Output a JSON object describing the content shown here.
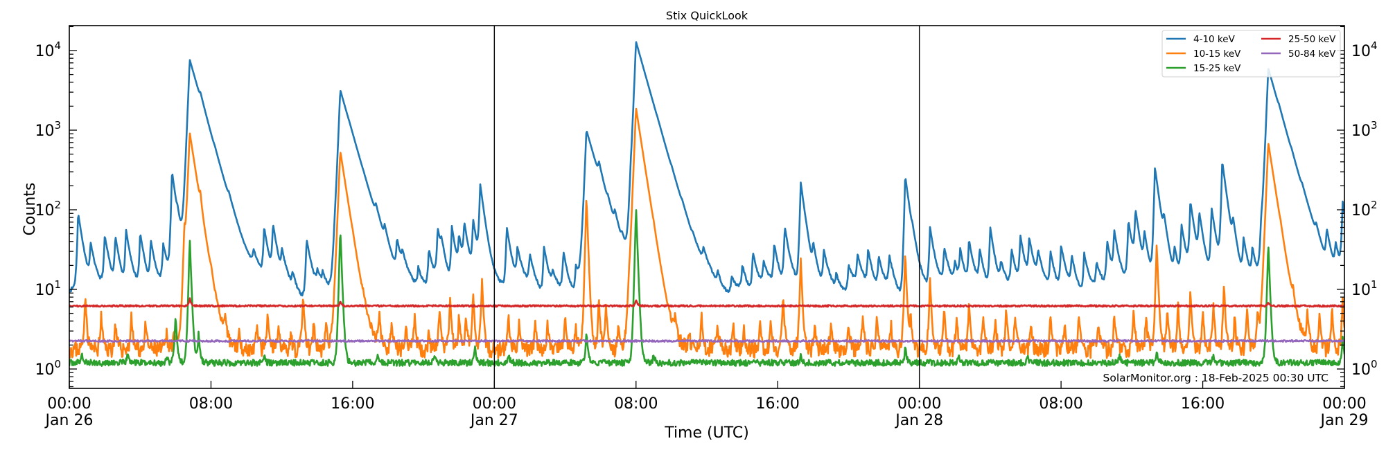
{
  "chart_data": {
    "type": "line",
    "title": "Stix QuickLook",
    "xlabel": "Time (UTC)",
    "ylabel": "Counts",
    "yscale": "log",
    "ylim": [
      0.55,
      20000
    ],
    "xlim_hours": [
      0,
      72
    ],
    "x_ticks": [
      {
        "hour": 0,
        "time": "00:00",
        "date": "Jan 26"
      },
      {
        "hour": 8,
        "time": "08:00",
        "date": ""
      },
      {
        "hour": 16,
        "time": "16:00",
        "date": ""
      },
      {
        "hour": 24,
        "time": "00:00",
        "date": "Jan 27"
      },
      {
        "hour": 32,
        "time": "08:00",
        "date": ""
      },
      {
        "hour": 40,
        "time": "16:00",
        "date": ""
      },
      {
        "hour": 48,
        "time": "00:00",
        "date": "Jan 28"
      },
      {
        "hour": 56,
        "time": "08:00",
        "date": ""
      },
      {
        "hour": 64,
        "time": "16:00",
        "date": ""
      },
      {
        "hour": 72,
        "time": "00:00",
        "date": "Jan 29"
      }
    ],
    "y_ticks": [
      {
        "exp": 0,
        "base": "10",
        "sup": "0"
      },
      {
        "exp": 1,
        "base": "10",
        "sup": "1"
      },
      {
        "exp": 2,
        "base": "10",
        "sup": "2"
      },
      {
        "exp": 3,
        "base": "10",
        "sup": "3"
      },
      {
        "exp": 4,
        "base": "10",
        "sup": "4"
      }
    ],
    "day_separators_hours": [
      24,
      48
    ],
    "grid": false,
    "legend_position": "upper right",
    "annotation": "SolarMonitor.org : 18-Feb-2025 00:30 UTC",
    "series": [
      {
        "name": "4-10 keV",
        "color": "#1f77b4",
        "baseline": 9.5,
        "noise": 0.06,
        "seed": 11,
        "peaks": [
          [
            0.5,
            90
          ],
          [
            1.2,
            35
          ],
          [
            2.0,
            45
          ],
          [
            2.6,
            45
          ],
          [
            3.2,
            55
          ],
          [
            4.0,
            50
          ],
          [
            4.6,
            40
          ],
          [
            5.3,
            35
          ],
          [
            5.8,
            300
          ],
          [
            6.1,
            30
          ],
          [
            6.8,
            7700
          ],
          [
            7.4,
            450
          ],
          [
            8.2,
            40
          ],
          [
            9.0,
            30
          ],
          [
            10.4,
            20
          ],
          [
            11.0,
            55
          ],
          [
            11.5,
            60
          ],
          [
            12.0,
            25
          ],
          [
            12.6,
            15
          ],
          [
            13.4,
            45
          ],
          [
            14.0,
            15
          ],
          [
            14.3,
            15
          ],
          [
            15.0,
            25
          ],
          [
            15.3,
            3200
          ],
          [
            15.8,
            30
          ],
          [
            16.3,
            12
          ],
          [
            16.6,
            15
          ],
          [
            17.3,
            40
          ],
          [
            17.8,
            30
          ],
          [
            18.5,
            35
          ],
          [
            18.8,
            20
          ],
          [
            19.7,
            18
          ],
          [
            20.3,
            30
          ],
          [
            20.8,
            55
          ],
          [
            21.0,
            25
          ],
          [
            21.6,
            60
          ],
          [
            22.0,
            40
          ],
          [
            22.3,
            60
          ],
          [
            22.8,
            70
          ],
          [
            23.2,
            200
          ],
          [
            24.7,
            60
          ],
          [
            25.3,
            30
          ],
          [
            26.0,
            25
          ],
          [
            26.8,
            35
          ],
          [
            27.3,
            15
          ],
          [
            27.9,
            30
          ],
          [
            28.6,
            20
          ],
          [
            29.2,
            1000
          ],
          [
            29.9,
            140
          ],
          [
            30.4,
            30
          ],
          [
            30.8,
            40
          ],
          [
            31.2,
            20
          ],
          [
            31.7,
            100
          ],
          [
            32.0,
            12900
          ],
          [
            33.2,
            40
          ],
          [
            34.0,
            25
          ],
          [
            34.6,
            20
          ],
          [
            35.2,
            15
          ],
          [
            35.8,
            20
          ],
          [
            36.6,
            15
          ],
          [
            37.4,
            15
          ],
          [
            38.0,
            20
          ],
          [
            38.6,
            30
          ],
          [
            39.2,
            20
          ],
          [
            39.8,
            35
          ],
          [
            40.4,
            60
          ],
          [
            41.3,
            220
          ],
          [
            42.0,
            30
          ],
          [
            42.6,
            30
          ],
          [
            43.3,
            15
          ],
          [
            44.0,
            20
          ],
          [
            44.5,
            25
          ],
          [
            45.1,
            30
          ],
          [
            45.7,
            25
          ],
          [
            46.3,
            25
          ],
          [
            47.2,
            270
          ],
          [
            47.6,
            20
          ],
          [
            48.6,
            60
          ],
          [
            49.4,
            30
          ],
          [
            50.0,
            20
          ],
          [
            50.3,
            30
          ],
          [
            50.8,
            40
          ],
          [
            51.4,
            30
          ],
          [
            52.0,
            60
          ],
          [
            52.6,
            20
          ],
          [
            53.2,
            30
          ],
          [
            53.7,
            45
          ],
          [
            54.2,
            40
          ],
          [
            54.7,
            25
          ],
          [
            55.4,
            30
          ],
          [
            56.0,
            35
          ],
          [
            56.6,
            25
          ],
          [
            57.3,
            30
          ],
          [
            58.0,
            20
          ],
          [
            58.6,
            40
          ],
          [
            59.0,
            50
          ],
          [
            59.8,
            70
          ],
          [
            60.2,
            90
          ],
          [
            60.7,
            45
          ],
          [
            61.3,
            340
          ],
          [
            61.8,
            50
          ],
          [
            62.4,
            30
          ],
          [
            62.8,
            60
          ],
          [
            63.3,
            120
          ],
          [
            63.8,
            80
          ],
          [
            64.5,
            100
          ],
          [
            65.1,
            400
          ],
          [
            65.7,
            50
          ],
          [
            66.3,
            40
          ],
          [
            66.8,
            30
          ],
          [
            67.3,
            45
          ],
          [
            67.7,
            6000
          ],
          [
            68.3,
            140
          ],
          [
            69.0,
            40
          ],
          [
            69.6,
            30
          ],
          [
            70.4,
            25
          ],
          [
            71.0,
            45
          ],
          [
            71.5,
            30
          ],
          [
            71.9,
            120
          ]
        ]
      },
      {
        "name": "10-15 keV",
        "color": "#ff7f0e",
        "baseline": 1.8,
        "noise": 0.08,
        "seed": 23,
        "peaks": [
          [
            0.9,
            9
          ],
          [
            1.8,
            5
          ],
          [
            2.6,
            4
          ],
          [
            3.5,
            5
          ],
          [
            4.3,
            4
          ],
          [
            5.5,
            3
          ],
          [
            5.9,
            3.5
          ],
          [
            6.5,
            50
          ],
          [
            6.8,
            930
          ],
          [
            7.4,
            50
          ],
          [
            8.0,
            4
          ],
          [
            8.8,
            3.5
          ],
          [
            9.6,
            3
          ],
          [
            10.6,
            4
          ],
          [
            11.2,
            5
          ],
          [
            11.8,
            4
          ],
          [
            12.5,
            3
          ],
          [
            13.2,
            9
          ],
          [
            13.8,
            4
          ],
          [
            14.5,
            4
          ],
          [
            15.3,
            550
          ],
          [
            16.0,
            4
          ],
          [
            16.6,
            3
          ],
          [
            17.5,
            5
          ],
          [
            18.2,
            4
          ],
          [
            19.0,
            4
          ],
          [
            19.5,
            5
          ],
          [
            20.3,
            3
          ],
          [
            20.9,
            6
          ],
          [
            21.5,
            8
          ],
          [
            22.0,
            5
          ],
          [
            22.4,
            5
          ],
          [
            22.8,
            10
          ],
          [
            23.3,
            14
          ],
          [
            24.8,
            5
          ],
          [
            25.4,
            4
          ],
          [
            26.3,
            4
          ],
          [
            27.0,
            4
          ],
          [
            28.0,
            5
          ],
          [
            28.6,
            3.5
          ],
          [
            29.2,
            150
          ],
          [
            29.9,
            8
          ],
          [
            30.3,
            7
          ],
          [
            31.0,
            4
          ],
          [
            31.6,
            5
          ],
          [
            32.0,
            1900
          ],
          [
            33.0,
            5
          ],
          [
            34.2,
            4
          ],
          [
            35.0,
            3
          ],
          [
            35.7,
            5
          ],
          [
            36.6,
            4
          ],
          [
            37.5,
            4
          ],
          [
            38.1,
            3.5
          ],
          [
            39.0,
            4
          ],
          [
            39.6,
            4
          ],
          [
            40.3,
            9
          ],
          [
            41.3,
            25
          ],
          [
            42.1,
            4
          ],
          [
            43.0,
            4
          ],
          [
            44.0,
            4
          ],
          [
            44.8,
            5
          ],
          [
            45.6,
            5
          ],
          [
            46.4,
            4
          ],
          [
            47.2,
            30
          ],
          [
            47.5,
            5
          ],
          [
            48.6,
            14
          ],
          [
            49.4,
            6
          ],
          [
            50.1,
            5
          ],
          [
            50.8,
            7
          ],
          [
            51.6,
            5
          ],
          [
            52.3,
            4
          ],
          [
            52.9,
            6
          ],
          [
            53.4,
            5
          ],
          [
            54.3,
            4
          ],
          [
            55.4,
            5
          ],
          [
            56.2,
            4
          ],
          [
            57.0,
            5
          ],
          [
            58.1,
            4
          ],
          [
            59.0,
            5
          ],
          [
            60.1,
            6
          ],
          [
            60.8,
            5
          ],
          [
            61.4,
            38
          ],
          [
            62.0,
            6
          ],
          [
            62.6,
            7
          ],
          [
            63.3,
            10
          ],
          [
            64.0,
            6
          ],
          [
            64.6,
            7
          ],
          [
            65.2,
            12
          ],
          [
            65.8,
            5
          ],
          [
            66.5,
            6
          ],
          [
            67.1,
            5
          ],
          [
            67.7,
            700
          ],
          [
            68.4,
            6
          ],
          [
            69.1,
            5
          ],
          [
            69.9,
            5
          ],
          [
            70.6,
            5
          ],
          [
            71.3,
            6
          ],
          [
            71.9,
            8
          ]
        ]
      },
      {
        "name": "15-25 keV",
        "color": "#2ca02c",
        "baseline": 1.2,
        "noise": 0.06,
        "seed": 37,
        "peaks": [
          [
            0.7,
            1.6
          ],
          [
            3.3,
            1.6
          ],
          [
            5.5,
            1.5
          ],
          [
            6.0,
            5
          ],
          [
            6.8,
            45
          ],
          [
            7.3,
            3
          ],
          [
            11.0,
            1.5
          ],
          [
            15.3,
            60
          ],
          [
            17.4,
            1.5
          ],
          [
            20.6,
            1.5
          ],
          [
            22.9,
            2.0
          ],
          [
            24.8,
            1.5
          ],
          [
            29.2,
            3
          ],
          [
            32.0,
            110
          ],
          [
            33.0,
            1.6
          ],
          [
            41.3,
            1.5
          ],
          [
            47.2,
            2.0
          ],
          [
            50.2,
            1.5
          ],
          [
            54.1,
            1.5
          ],
          [
            59.3,
            1.5
          ],
          [
            61.4,
            1.7
          ],
          [
            64.6,
            1.6
          ],
          [
            67.7,
            40
          ],
          [
            71.9,
            2.5
          ]
        ]
      },
      {
        "name": "25-50 keV",
        "color": "#d62728",
        "baseline": 6.2,
        "noise": 0.025,
        "seed": 51,
        "peaks": [
          [
            6.8,
            8
          ],
          [
            15.3,
            7
          ],
          [
            32.0,
            7.5
          ],
          [
            67.7,
            7
          ]
        ]
      },
      {
        "name": "50-84 keV",
        "color": "#9467bd",
        "baseline": 2.25,
        "noise": 0.025,
        "seed": 67,
        "peaks": []
      }
    ]
  }
}
